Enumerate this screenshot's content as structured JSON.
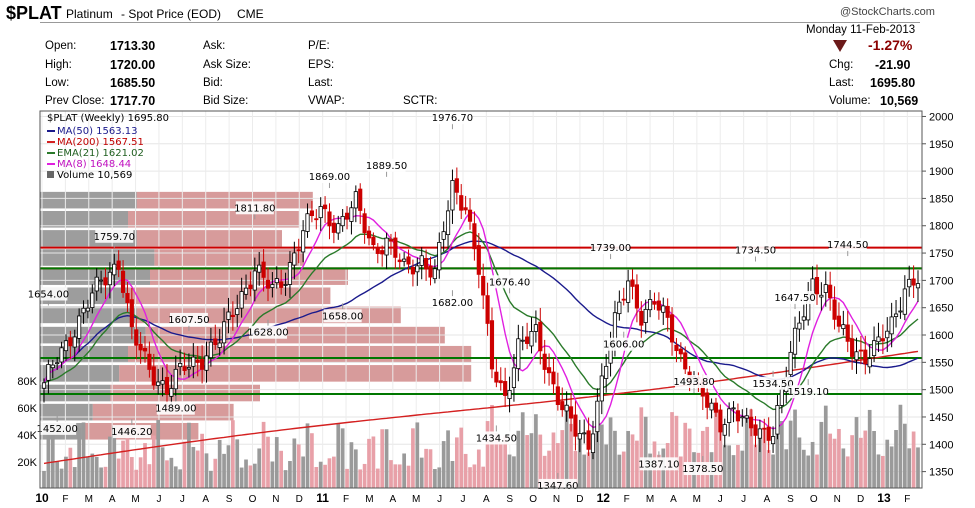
{
  "header": {
    "symbol": "$PLAT",
    "name": "Platinum",
    "subtitle": "- Spot Price (EOD)",
    "exchange": "CME",
    "brand": "@StockCharts.com",
    "date": "Monday  11-Feb-2013",
    "change_pct": "-1.27%",
    "quote": {
      "open_label": "Open:",
      "open": "1713.30",
      "high_label": "High:",
      "high": "1720.00",
      "low_label": "Low:",
      "low": "1685.50",
      "prev_label": "Prev Close:",
      "prev": "1717.70",
      "ask_label": "Ask:",
      "asksize_label": "Ask Size:",
      "bid_label": "Bid:",
      "bidsize_label": "Bid Size:",
      "pe_label": "P/E:",
      "eps_label": "EPS:",
      "last_label_mid": "Last:",
      "vwap_label": "VWAP:",
      "sctr_label": "SCTR:",
      "chg_label": "Chg:",
      "chg": "-21.90",
      "last_label": "Last:",
      "last": "1695.80",
      "volume_label": "Volume:",
      "volume": "10,569"
    }
  },
  "legend": {
    "title": "$PLAT (Weekly) 1695.80",
    "ma50": "MA(50) 1563.13",
    "ma200": "MA(200) 1567.51",
    "ema21": "EMA(21) 1621.02",
    "ma8": "MA(8) 1648.44",
    "volume": "Volume 10,569"
  },
  "colors": {
    "up": "#000000",
    "down": "#cc0000",
    "ma50": "#1a1a8c",
    "ma200": "#d42020",
    "ema21": "#2a7a2a",
    "ma8": "#e020e0",
    "vol_up": "#9a9a9a",
    "vol_down": "#e8a0a8",
    "vbp_dark": "#8c8c8c",
    "vbp_light": "#d08a8a",
    "hline_red": "#cc0000",
    "hline_green": "#007700"
  },
  "chart_data": {
    "type": "candlestick",
    "ylim": [
      1320,
      2010
    ],
    "y_ticks": [
      1350,
      1400,
      1450,
      1500,
      1550,
      1600,
      1650,
      1700,
      1750,
      1800,
      1850,
      1900,
      1950,
      2000
    ],
    "volume_ticks": [
      "20K",
      "40K",
      "60K",
      "80K"
    ],
    "x_ticks": [
      "10",
      "F",
      "M",
      "A",
      "M",
      "J",
      "J",
      "A",
      "S",
      "O",
      "N",
      "D",
      "11",
      "F",
      "M",
      "A",
      "M",
      "J",
      "J",
      "A",
      "S",
      "O",
      "N",
      "D",
      "12",
      "F",
      "M",
      "A",
      "M",
      "J",
      "J",
      "A",
      "S",
      "O",
      "N",
      "D",
      "13",
      "F"
    ],
    "x_year_ticks": [
      "10",
      "11",
      "12",
      "13"
    ],
    "close_anchors": [
      [
        0,
        1505
      ],
      [
        3,
        1560
      ],
      [
        8,
        1625
      ],
      [
        13,
        1700
      ],
      [
        17,
        1735
      ],
      [
        20,
        1600
      ],
      [
        24,
        1540
      ],
      [
        28,
        1500
      ],
      [
        32,
        1540
      ],
      [
        36,
        1560
      ],
      [
        40,
        1590
      ],
      [
        44,
        1660
      ],
      [
        48,
        1720
      ],
      [
        52,
        1680
      ],
      [
        55,
        1710
      ],
      [
        59,
        1790
      ],
      [
        63,
        1830
      ],
      [
        67,
        1800
      ],
      [
        71,
        1840
      ],
      [
        75,
        1760
      ],
      [
        78,
        1770
      ],
      [
        82,
        1720
      ],
      [
        86,
        1740
      ],
      [
        89,
        1710
      ],
      [
        93,
        1870
      ],
      [
        96,
        1840
      ],
      [
        99,
        1720
      ],
      [
        102,
        1540
      ],
      [
        105,
        1490
      ],
      [
        108,
        1580
      ],
      [
        112,
        1600
      ],
      [
        115,
        1530
      ],
      [
        118,
        1470
      ],
      [
        121,
        1420
      ],
      [
        124,
        1400
      ],
      [
        127,
        1520
      ],
      [
        130,
        1620
      ],
      [
        133,
        1700
      ],
      [
        136,
        1640
      ],
      [
        139,
        1660
      ],
      [
        142,
        1620
      ],
      [
        145,
        1560
      ],
      [
        148,
        1520
      ],
      [
        151,
        1470
      ],
      [
        154,
        1440
      ],
      [
        157,
        1470
      ],
      [
        160,
        1430
      ],
      [
        163,
        1420
      ],
      [
        166,
        1430
      ],
      [
        169,
        1530
      ],
      [
        172,
        1620
      ],
      [
        175,
        1700
      ],
      [
        178,
        1680
      ],
      [
        181,
        1610
      ],
      [
        184,
        1580
      ],
      [
        187,
        1560
      ],
      [
        190,
        1580
      ],
      [
        193,
        1620
      ],
      [
        196,
        1690
      ],
      [
        199,
        1700
      ]
    ],
    "bars": 200,
    "horizontal_lines": [
      {
        "price": 1760,
        "color": "red"
      },
      {
        "price": 1722,
        "color": "red"
      },
      {
        "price": 1722,
        "color": "green"
      },
      {
        "price": 1558,
        "color": "green"
      },
      {
        "price": 1492,
        "color": "green"
      }
    ],
    "volume_by_price": [
      {
        "price": 1845,
        "up": 0.22,
        "down": 0.62
      },
      {
        "price": 1810,
        "up": 0.2,
        "down": 0.59
      },
      {
        "price": 1775,
        "up": 0.22,
        "down": 0.55
      },
      {
        "price": 1740,
        "up": 0.26,
        "down": 0.6
      },
      {
        "price": 1705,
        "up": 0.25,
        "down": 0.7
      },
      {
        "price": 1670,
        "up": 0.2,
        "down": 0.66
      },
      {
        "price": 1635,
        "up": 0.22,
        "down": 0.82
      },
      {
        "price": 1598,
        "up": 0.24,
        "down": 0.92
      },
      {
        "price": 1563,
        "up": 0.2,
        "down": 0.98
      },
      {
        "price": 1528,
        "up": 0.18,
        "down": 0.98
      },
      {
        "price": 1492,
        "up": 0.16,
        "down": 0.5
      },
      {
        "price": 1457,
        "up": 0.12,
        "down": 0.44
      },
      {
        "price": 1422,
        "up": 0.1,
        "down": 0.36
      }
    ],
    "annotations": [
      {
        "text": "1654.00",
        "bar": 1,
        "price": 1654,
        "pos": "above"
      },
      {
        "text": "1452.00",
        "bar": 3,
        "price": 1452,
        "pos": "below"
      },
      {
        "text": "1759.70",
        "bar": 16,
        "price": 1759.7,
        "pos": "above"
      },
      {
        "text": "1446.20",
        "bar": 20,
        "price": 1446.2,
        "pos": "below"
      },
      {
        "text": "1489.00",
        "bar": 30,
        "price": 1489,
        "pos": "below"
      },
      {
        "text": "1607.50",
        "bar": 33,
        "price": 1607.5,
        "pos": "above"
      },
      {
        "text": "1811.80",
        "bar": 48,
        "price": 1811.8,
        "pos": "above"
      },
      {
        "text": "1628.00",
        "bar": 51,
        "price": 1628,
        "pos": "below"
      },
      {
        "text": "1869.00",
        "bar": 65,
        "price": 1869,
        "pos": "above"
      },
      {
        "text": "1889.50",
        "bar": 78,
        "price": 1889.5,
        "pos": "above"
      },
      {
        "text": "1658.00",
        "bar": 68,
        "price": 1658,
        "pos": "below"
      },
      {
        "text": "1976.70",
        "bar": 93,
        "price": 1976.7,
        "pos": "above"
      },
      {
        "text": "1682.00",
        "bar": 93,
        "price": 1682,
        "pos": "below"
      },
      {
        "text": "1676.40",
        "bar": 106,
        "price": 1676.4,
        "pos": "above"
      },
      {
        "text": "1434.50",
        "bar": 103,
        "price": 1434.5,
        "pos": "below"
      },
      {
        "text": "1347.60",
        "bar": 117,
        "price": 1347.6,
        "pos": "below"
      },
      {
        "text": "1739.00",
        "bar": 129,
        "price": 1739,
        "pos": "above"
      },
      {
        "text": "1606.00",
        "bar": 132,
        "price": 1606,
        "pos": "below"
      },
      {
        "text": "1493.80",
        "bar": 148,
        "price": 1493.8,
        "pos": "above"
      },
      {
        "text": "1387.10",
        "bar": 140,
        "price": 1387.1,
        "pos": "below"
      },
      {
        "text": "1378.50",
        "bar": 150,
        "price": 1378.5,
        "pos": "below"
      },
      {
        "text": "1734.50",
        "bar": 162,
        "price": 1734.5,
        "pos": "above"
      },
      {
        "text": "1534.50",
        "bar": 166,
        "price": 1534.5,
        "pos": "below"
      },
      {
        "text": "1647.50",
        "bar": 171,
        "price": 1647.5,
        "pos": "above"
      },
      {
        "text": "1519.10",
        "bar": 174,
        "price": 1519.1,
        "pos": "below"
      },
      {
        "text": "1744.50",
        "bar": 183,
        "price": 1744.5,
        "pos": "above"
      }
    ]
  }
}
